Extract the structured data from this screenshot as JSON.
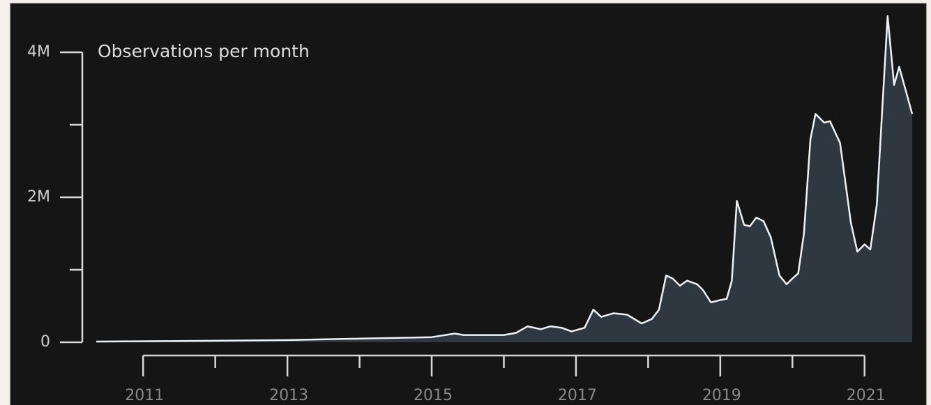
{
  "chart_data": {
    "type": "area",
    "title": "Observations per month",
    "x": [
      2010.35,
      2011.92,
      2013.0,
      2014.0,
      2015.0,
      2015.32,
      2015.44,
      2016.0,
      2016.17,
      2016.33,
      2016.51,
      2016.65,
      2016.8,
      2016.94,
      2017.12,
      2017.24,
      2017.35,
      2017.52,
      2017.71,
      2017.91,
      2018.05,
      2018.15,
      2018.25,
      2018.34,
      2018.44,
      2018.54,
      2018.68,
      2018.76,
      2018.87,
      2018.99,
      2019.09,
      2019.16,
      2019.23,
      2019.33,
      2019.41,
      2019.5,
      2019.6,
      2019.7,
      2019.82,
      2019.92,
      2020.0,
      2020.08,
      2020.16,
      2020.25,
      2020.32,
      2020.44,
      2020.52,
      2020.66,
      2020.81,
      2020.9,
      2021.0,
      2021.08,
      2021.17,
      2021.25,
      2021.32,
      2021.41,
      2021.48,
      2021.66
    ],
    "values": [
      10000,
      20000,
      30000,
      50000,
      70000,
      120000,
      100000,
      100000,
      130000,
      220000,
      180000,
      220000,
      200000,
      150000,
      200000,
      450000,
      350000,
      400000,
      380000,
      260000,
      320000,
      450000,
      920000,
      880000,
      780000,
      850000,
      800000,
      720000,
      550000,
      580000,
      600000,
      850000,
      1950000,
      1620000,
      1600000,
      1720000,
      1670000,
      1450000,
      920000,
      800000,
      880000,
      950000,
      1500000,
      2800000,
      3150000,
      3030000,
      3050000,
      2750000,
      1650000,
      1250000,
      1350000,
      1280000,
      1900000,
      3300000,
      4500000,
      3550000,
      3800000,
      3150000
    ],
    "color": "#9fb4c4",
    "xlim": [
      2010.35,
      2021.66
    ],
    "xticks": [
      2011,
      2013,
      2015,
      2017,
      2019,
      2021
    ],
    "xminor_ticks": [
      2012,
      2014,
      2016,
      2018,
      2020
    ],
    "ylim": [
      0,
      4000000
    ],
    "yticks": [
      0,
      {
        "value": 2000000,
        "label": "2M"
      },
      {
        "value": 4000000,
        "label": "4M"
      }
    ],
    "yminor_ticks": [
      1000000,
      3000000
    ]
  }
}
